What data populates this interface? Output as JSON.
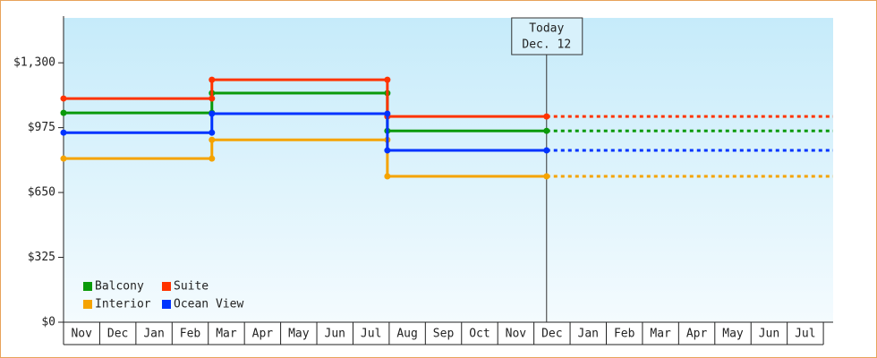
{
  "chart_data": {
    "type": "step",
    "categories": [
      "Nov",
      "Dec",
      "Jan",
      "Feb",
      "Mar",
      "Apr",
      "May",
      "Jun",
      "Jul",
      "Aug",
      "Sep",
      "Oct",
      "Nov",
      "Dec",
      "Jan",
      "Feb",
      "Mar",
      "Apr",
      "May",
      "Jun",
      "Jul"
    ],
    "x": [
      0,
      4.1,
      8.95,
      13.35
    ],
    "xlim": [
      0,
      21.27
    ],
    "ylim": [
      0,
      1525
    ],
    "yticks": [
      {
        "value": 0,
        "label": "$0"
      },
      {
        "value": 325,
        "label": "$325"
      },
      {
        "value": 650,
        "label": "$650"
      },
      {
        "value": 975,
        "label": "$975"
      },
      {
        "value": 1300,
        "label": "$1,300"
      }
    ],
    "projection": "dotted",
    "series": [
      {
        "name": "Balcony",
        "color": "#0a9a0a",
        "values": [
          1049,
          1148,
          959,
          959
        ]
      },
      {
        "name": "Suite",
        "color": "#ff3300",
        "values": [
          1121,
          1215,
          1031,
          1031
        ]
      },
      {
        "name": "Interior",
        "color": "#f5a300",
        "values": [
          820,
          914,
          731,
          731
        ]
      },
      {
        "name": "Ocean View",
        "color": "#0033ff",
        "values": [
          950,
          1045,
          861,
          861
        ]
      }
    ],
    "legend": "lower left",
    "annotation": {
      "lines": [
        "Today",
        "Dec. 12"
      ],
      "x": 13.35
    }
  }
}
